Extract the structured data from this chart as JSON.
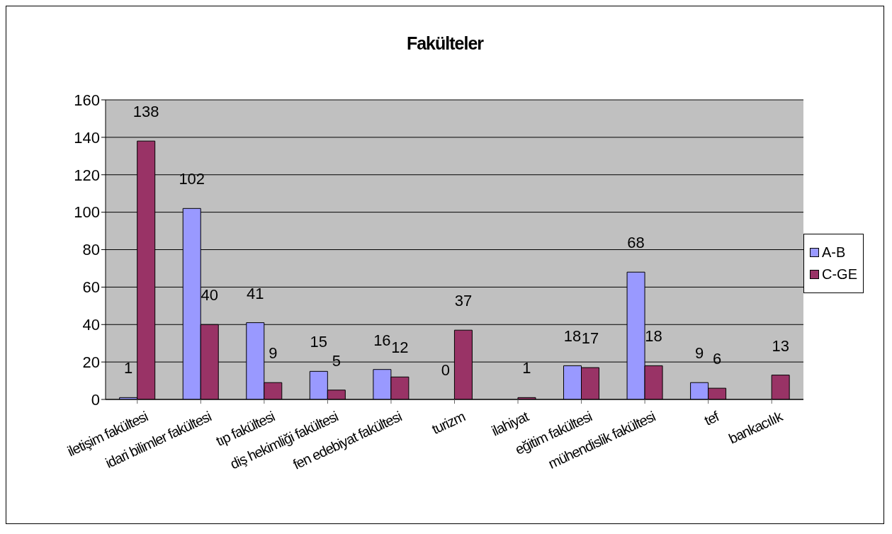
{
  "chart_data": {
    "type": "bar",
    "title": "Fakülteler",
    "categories": [
      "iletişim fakültesi",
      "idari bilimler fakültesi",
      "tıp fakültesi",
      "diş hekimliği fakültesi",
      "fen edebiyat fakültesi",
      "turizm",
      "ilahiyat",
      "eğitim fakültesi",
      "mühendislik fakültesi",
      "tef",
      "bankacılık"
    ],
    "series": [
      {
        "name": "A-B",
        "color": "#9999ff",
        "values": [
          1,
          102,
          41,
          15,
          16,
          0,
          null,
          18,
          68,
          9,
          null
        ]
      },
      {
        "name": "C-GE",
        "color": "#993366",
        "values": [
          138,
          40,
          9,
          5,
          12,
          37,
          1,
          17,
          18,
          6,
          13
        ]
      }
    ],
    "ylim": [
      0,
      160
    ],
    "yticks": [
      0,
      20,
      40,
      60,
      80,
      100,
      120,
      140,
      160
    ],
    "grid": "y",
    "legend": "right",
    "data_labels": true
  }
}
